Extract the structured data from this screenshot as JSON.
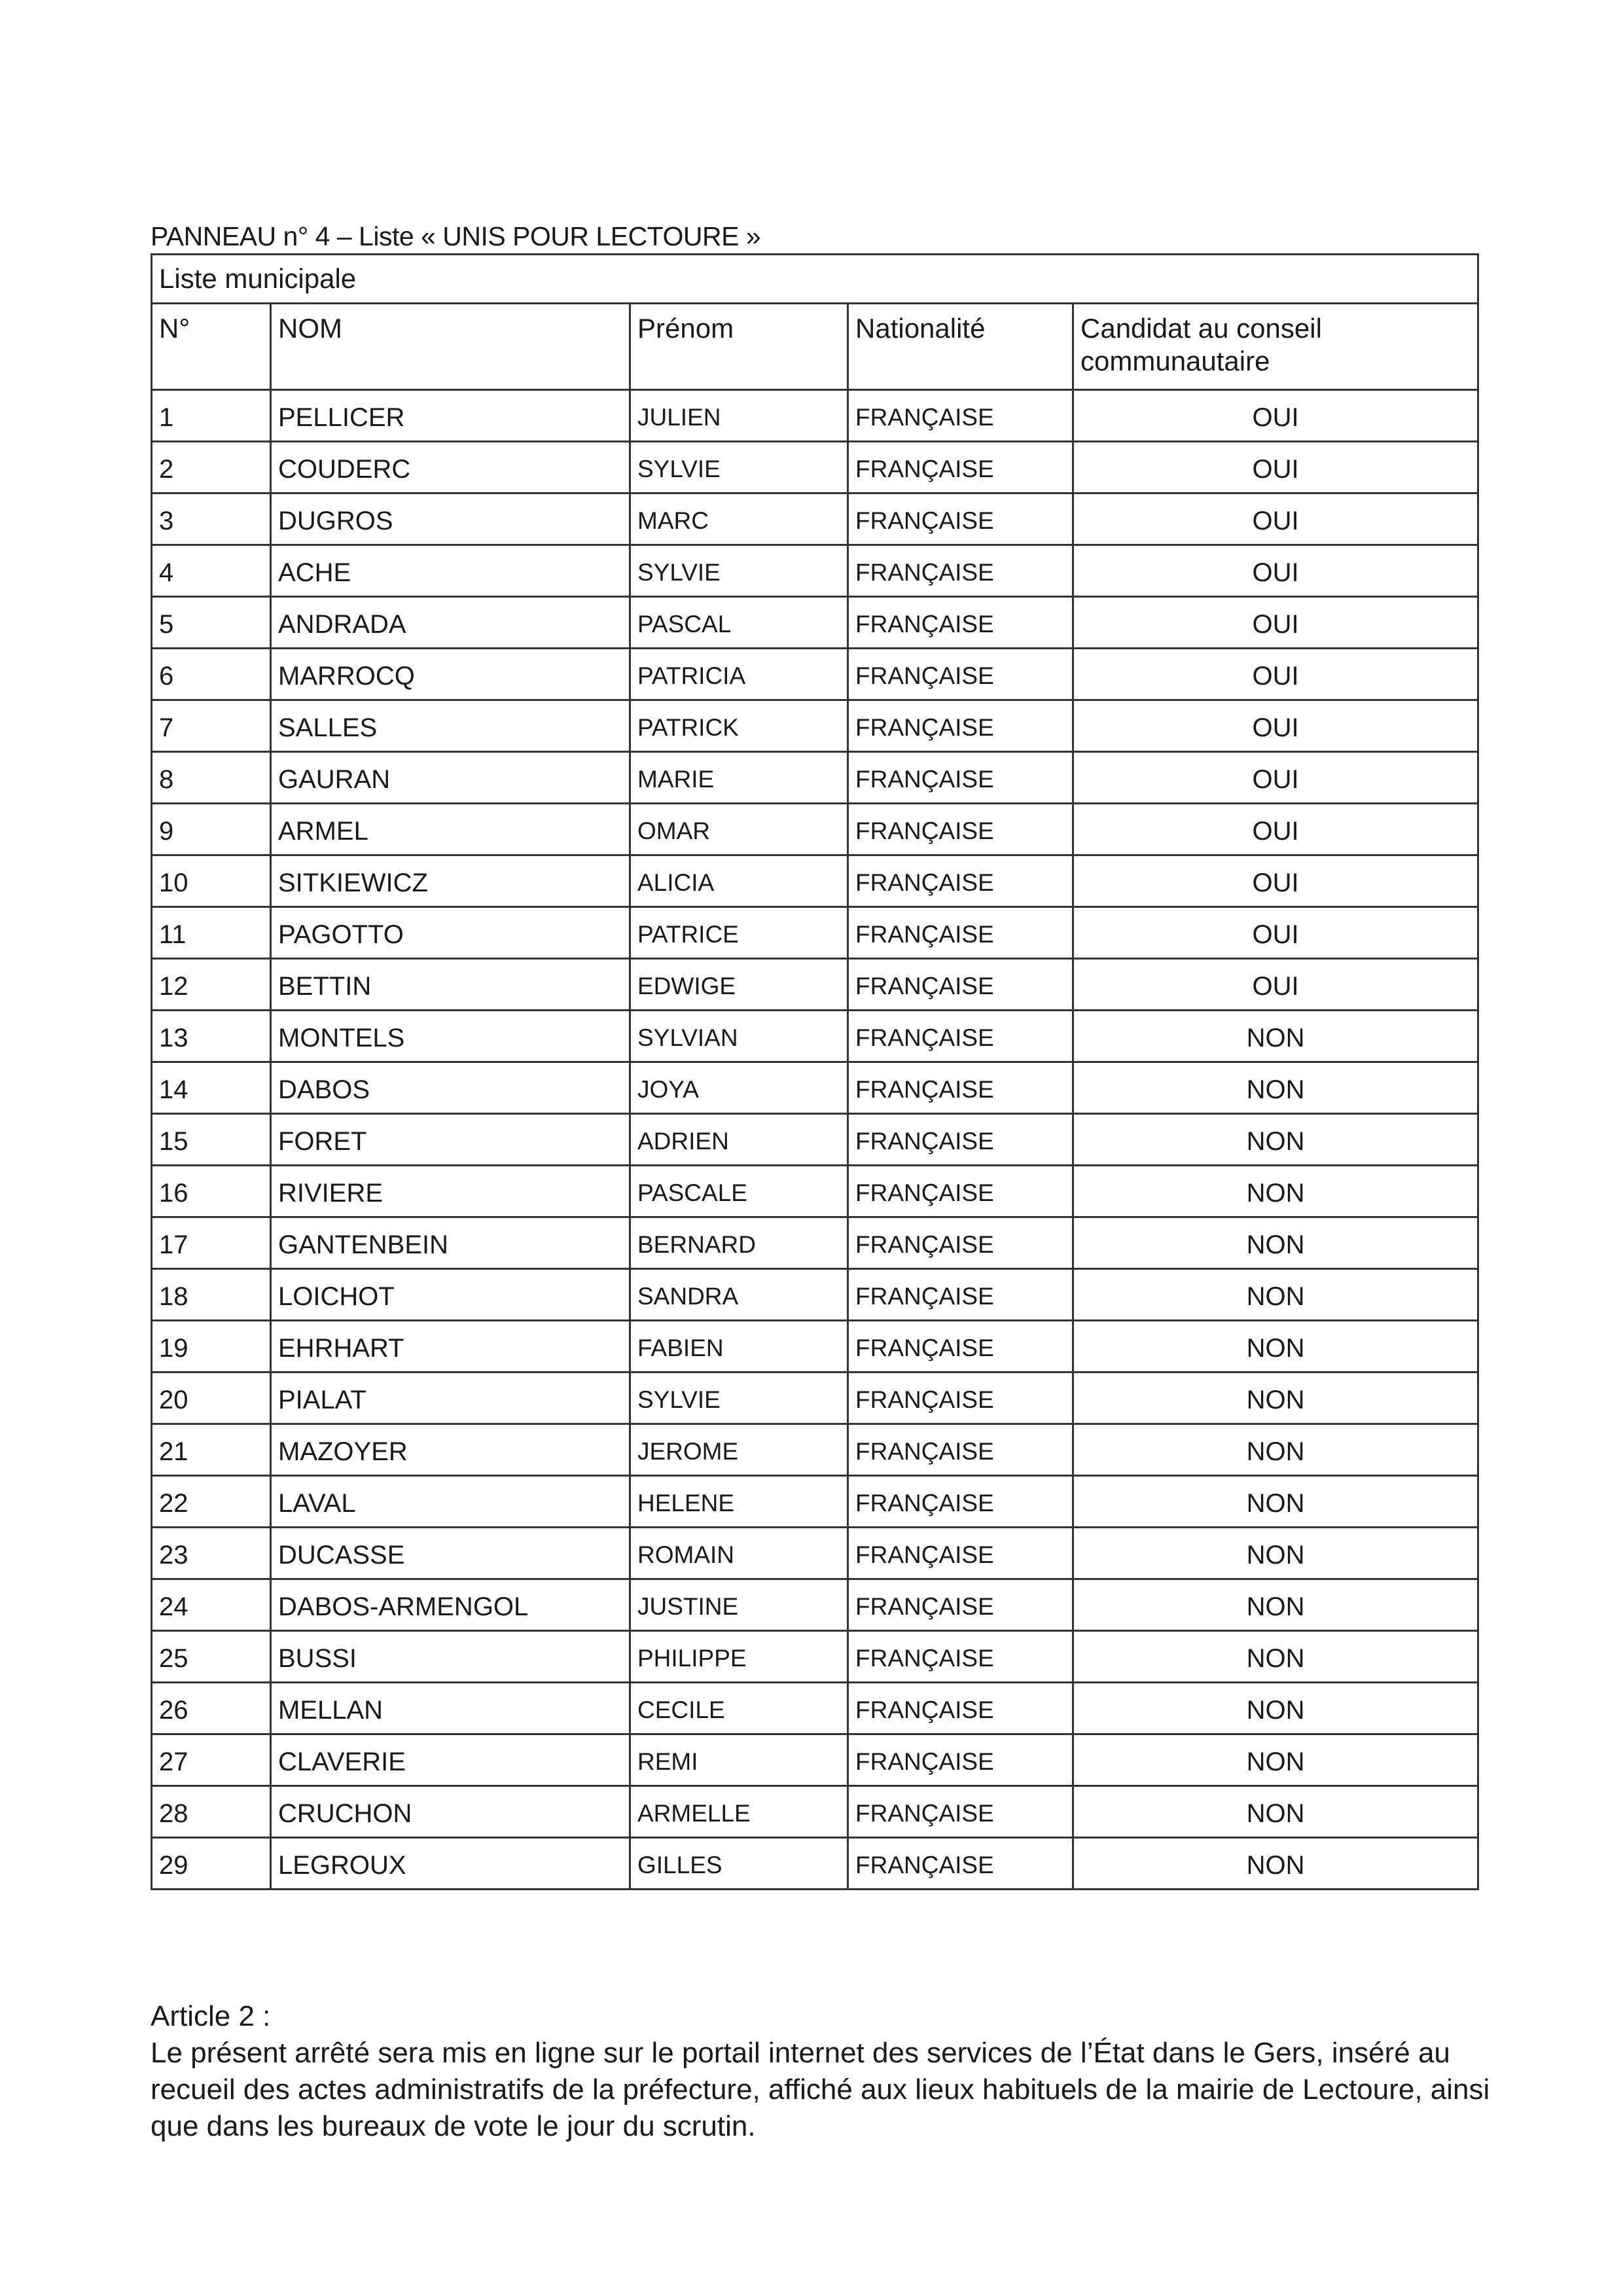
{
  "title": "PANNEAU n° 4 – Liste « UNIS POUR LECTOURE »",
  "table": {
    "caption": "Liste municipale",
    "headers": [
      "N°",
      "NOM",
      "Prénom",
      "Nationalité",
      "Candidat au conseil communautaire"
    ],
    "rows": [
      [
        "1",
        "PELLICER",
        "JULIEN",
        "FRANÇAISE",
        "OUI"
      ],
      [
        "2",
        "COUDERC",
        "SYLVIE",
        "FRANÇAISE",
        "OUI"
      ],
      [
        "3",
        "DUGROS",
        "MARC",
        "FRANÇAISE",
        "OUI"
      ],
      [
        "4",
        "ACHE",
        "SYLVIE",
        "FRANÇAISE",
        "OUI"
      ],
      [
        "5",
        "ANDRADA",
        "PASCAL",
        "FRANÇAISE",
        "OUI"
      ],
      [
        "6",
        "MARROCQ",
        "PATRICIA",
        "FRANÇAISE",
        "OUI"
      ],
      [
        "7",
        "SALLES",
        "PATRICK",
        "FRANÇAISE",
        "OUI"
      ],
      [
        "8",
        "GAURAN",
        "MARIE",
        "FRANÇAISE",
        "OUI"
      ],
      [
        "9",
        "ARMEL",
        "OMAR",
        "FRANÇAISE",
        "OUI"
      ],
      [
        "10",
        "SITKIEWICZ",
        "ALICIA",
        "FRANÇAISE",
        "OUI"
      ],
      [
        "11",
        "PAGOTTO",
        "PATRICE",
        "FRANÇAISE",
        "OUI"
      ],
      [
        "12",
        "BETTIN",
        "EDWIGE",
        "FRANÇAISE",
        "OUI"
      ],
      [
        "13",
        "MONTELS",
        "SYLVIAN",
        "FRANÇAISE",
        "NON"
      ],
      [
        "14",
        "DABOS",
        "JOYA",
        "FRANÇAISE",
        "NON"
      ],
      [
        "15",
        "FORET",
        "ADRIEN",
        "FRANÇAISE",
        "NON"
      ],
      [
        "16",
        "RIVIERE",
        "PASCALE",
        "FRANÇAISE",
        "NON"
      ],
      [
        "17",
        "GANTENBEIN",
        "BERNARD",
        "FRANÇAISE",
        "NON"
      ],
      [
        "18",
        "LOICHOT",
        "SANDRA",
        "FRANÇAISE",
        "NON"
      ],
      [
        "19",
        "EHRHART",
        "FABIEN",
        "FRANÇAISE",
        "NON"
      ],
      [
        "20",
        "PIALAT",
        "SYLVIE",
        "FRANÇAISE",
        "NON"
      ],
      [
        "21",
        "MAZOYER",
        "JEROME",
        "FRANÇAISE",
        "NON"
      ],
      [
        "22",
        "LAVAL",
        "HELENE",
        "FRANÇAISE",
        "NON"
      ],
      [
        "23",
        "DUCASSE",
        "ROMAIN",
        "FRANÇAISE",
        "NON"
      ],
      [
        "24",
        "DABOS-ARMENGOL",
        "JUSTINE",
        "FRANÇAISE",
        "NON"
      ],
      [
        "25",
        "BUSSI",
        "PHILIPPE",
        "FRANÇAISE",
        "NON"
      ],
      [
        "26",
        "MELLAN",
        "CECILE",
        "FRANÇAISE",
        "NON"
      ],
      [
        "27",
        "CLAVERIE",
        "REMI",
        "FRANÇAISE",
        "NON"
      ],
      [
        "28",
        "CRUCHON",
        "ARMELLE",
        "FRANÇAISE",
        "NON"
      ],
      [
        "29",
        "LEGROUX",
        "GILLES",
        "FRANÇAISE",
        "NON"
      ]
    ]
  },
  "article": {
    "heading": "Article 2 :",
    "body": "Le présent arrêté sera mis en ligne sur le portail internet des services de l’État dans le Gers, inséré au recueil des actes administratifs de la préfecture, affiché aux lieux habituels de la mairie de Lectoure, ainsi que dans les bureaux de vote le jour du scrutin."
  }
}
